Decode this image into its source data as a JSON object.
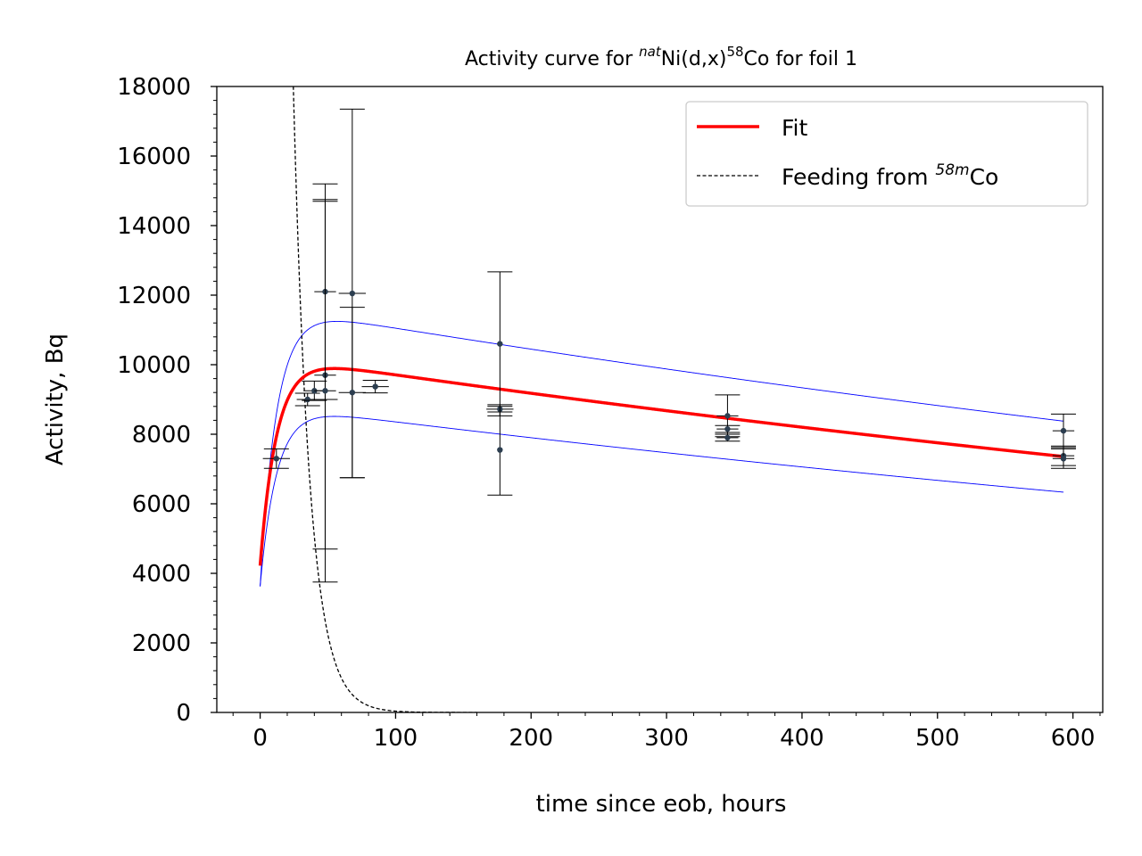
{
  "chart_data": {
    "type": "scatter",
    "title_main": "Activity curve for ",
    "title_sup1": "nat",
    "title_mid": "Ni(d,x)",
    "title_sup2": "58",
    "title_end": "Co for foil 1",
    "xlabel": "time since eob, hours",
    "ylabel": "Activity, Bq",
    "xlim": [
      -32,
      622
    ],
    "ylim": [
      0,
      18000
    ],
    "xticks": [
      0,
      100,
      200,
      300,
      400,
      500,
      600
    ],
    "yticks": [
      0,
      2000,
      4000,
      6000,
      8000,
      10000,
      12000,
      14000,
      16000,
      18000
    ],
    "grid": false,
    "legend_position": "top-right",
    "legend": {
      "fit": "Fit",
      "feeding_pre": "Feeding from ",
      "feeding_sup": "58m",
      "feeding_post": "Co"
    },
    "colors": {
      "fit": "#ff0000",
      "band": "#0000ff",
      "feeding": "#000000",
      "points": "#2c3e50",
      "errorbars": "#000000"
    },
    "points": [
      {
        "x": 12,
        "y": 7300,
        "yerr": 280,
        "xerr": 10
      },
      {
        "x": 35,
        "y": 9000,
        "yerr": 180,
        "xerr": 8
      },
      {
        "x": 40,
        "y": 9250,
        "yerr": 280,
        "xerr": 8
      },
      {
        "x": 48,
        "y": 9700,
        "yerr": 5000,
        "xerr": 8
      },
      {
        "x": 48,
        "y": 12100,
        "yerr": 3100,
        "xerr": 8
      },
      {
        "x": 48,
        "y": 9250,
        "yerr": 5500,
        "xerr": 8
      },
      {
        "x": 68,
        "y": 12050,
        "yerr": 5300,
        "xerr": 10
      },
      {
        "x": 68,
        "y": 9200,
        "yerr": 2450,
        "xerr": 10
      },
      {
        "x": 85,
        "y": 9370,
        "yerr": 180,
        "xerr": 10
      },
      {
        "x": 177,
        "y": 10600,
        "yerr": 2070,
        "xerr": 0
      },
      {
        "x": 177,
        "y": 8720,
        "yerr": 80,
        "xerr": 10
      },
      {
        "x": 177,
        "y": 7550,
        "yerr": 1300,
        "xerr": 0
      },
      {
        "x": 345,
        "y": 8530,
        "yerr": 600,
        "xerr": 8
      },
      {
        "x": 345,
        "y": 8150,
        "yerr": 100,
        "xerr": 8
      },
      {
        "x": 345,
        "y": 7900,
        "yerr": 100,
        "xerr": 8
      },
      {
        "x": 593,
        "y": 8100,
        "yerr": 480,
        "xerr": 8
      },
      {
        "x": 593,
        "y": 7380,
        "yerr": 280,
        "xerr": 8
      },
      {
        "x": 593,
        "y": 7300,
        "yerr": 280,
        "xerr": 8
      }
    ],
    "fit_model": {
      "t_max": 593,
      "fit": {
        "A": 10270,
        "lambda": 0.000562,
        "B": 6050,
        "mu": 0.0817
      },
      "upper": {
        "A": 11690,
        "lambda": 0.000562,
        "B": 8070,
        "mu": 0.0817
      },
      "lower": {
        "A": 8840,
        "lambda": 0.000562,
        "B": 5200,
        "mu": 0.0817
      },
      "feeding": {
        "C": 133000,
        "mu": 0.0817
      }
    }
  }
}
